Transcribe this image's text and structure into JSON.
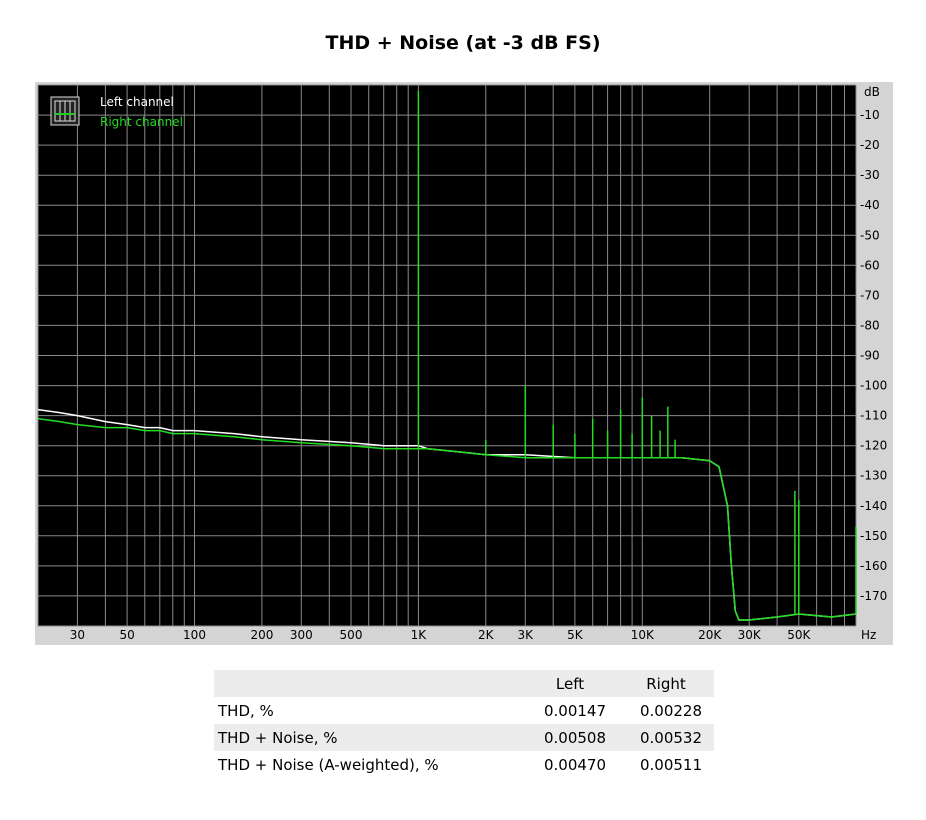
{
  "page": {
    "title": "THD + Noise (at -3 dB FS)"
  },
  "chart_data": {
    "type": "line",
    "title": "THD + Noise (at -3 dB FS)",
    "x_scale": "log",
    "xlim": [
      20,
      90000
    ],
    "ylim": [
      -180,
      0
    ],
    "x_unit": "Hz",
    "y_unit": "dB",
    "x_ticks": [
      {
        "v": 30,
        "label": "30"
      },
      {
        "v": 50,
        "label": "50"
      },
      {
        "v": 100,
        "label": "100"
      },
      {
        "v": 200,
        "label": "200"
      },
      {
        "v": 300,
        "label": "300"
      },
      {
        "v": 500,
        "label": "500"
      },
      {
        "v": 1000,
        "label": "1K"
      },
      {
        "v": 2000,
        "label": "2K"
      },
      {
        "v": 3000,
        "label": "3K"
      },
      {
        "v": 5000,
        "label": "5K"
      },
      {
        "v": 10000,
        "label": "10K"
      },
      {
        "v": 20000,
        "label": "20K"
      },
      {
        "v": 30000,
        "label": "30K"
      },
      {
        "v": 50000,
        "label": "50K"
      }
    ],
    "y_ticks": [
      {
        "v": -10,
        "label": "-10"
      },
      {
        "v": -20,
        "label": "-20"
      },
      {
        "v": -30,
        "label": "-30"
      },
      {
        "v": -40,
        "label": "-40"
      },
      {
        "v": -50,
        "label": "-50"
      },
      {
        "v": -60,
        "label": "-60"
      },
      {
        "v": -70,
        "label": "-70"
      },
      {
        "v": -80,
        "label": "-80"
      },
      {
        "v": -90,
        "label": "-90"
      },
      {
        "v": -100,
        "label": "-100"
      },
      {
        "v": -110,
        "label": "-110"
      },
      {
        "v": -120,
        "label": "-120"
      },
      {
        "v": -130,
        "label": "-130"
      },
      {
        "v": -140,
        "label": "-140"
      },
      {
        "v": -150,
        "label": "-150"
      },
      {
        "v": -160,
        "label": "-160"
      },
      {
        "v": -170,
        "label": "-170"
      }
    ],
    "grid": true,
    "legend_position": "top-left",
    "background": "#000000",
    "series": [
      {
        "name": "Left channel",
        "color": "#ffffff",
        "x": [
          20,
          25,
          30,
          40,
          50,
          60,
          70,
          80,
          100,
          150,
          200,
          300,
          500,
          700,
          900,
          1000,
          1100,
          1500,
          2000,
          3000,
          5000,
          10000,
          15000,
          20000,
          22000,
          24000,
          25000,
          26000,
          27000,
          30000,
          40000,
          50000,
          70000,
          90000
        ],
        "y": [
          -108,
          -109,
          -110,
          -112,
          -113,
          -114,
          -114,
          -115,
          -115,
          -116,
          -117,
          -118,
          -119,
          -120,
          -120,
          -120,
          -121,
          -122,
          -123,
          -123,
          -124,
          -124,
          -124,
          -125,
          -127,
          -140,
          -160,
          -175,
          -178,
          -178,
          -177,
          -176,
          -177,
          -176
        ]
      },
      {
        "name": "Right channel",
        "color": "#22dd22",
        "x": [
          20,
          25,
          30,
          40,
          50,
          60,
          70,
          80,
          100,
          150,
          200,
          300,
          500,
          700,
          900,
          1000,
          1100,
          1500,
          2000,
          3000,
          5000,
          10000,
          15000,
          20000,
          22000,
          24000,
          25000,
          26000,
          27000,
          30000,
          40000,
          50000,
          70000,
          90000
        ],
        "y": [
          -111,
          -112,
          -113,
          -114,
          -114,
          -115,
          -115,
          -116,
          -116,
          -117,
          -118,
          -119,
          -120,
          -121,
          -121,
          -121,
          -121,
          -122,
          -123,
          -124,
          -124,
          -124,
          -124,
          -125,
          -127,
          -140,
          -160,
          -175,
          -178,
          -178,
          -177,
          -176,
          -177,
          -176
        ],
        "peaks": [
          {
            "x": 1000,
            "y": -2
          },
          {
            "x": 2000,
            "y": -118
          },
          {
            "x": 3000,
            "y": -100
          },
          {
            "x": 4000,
            "y": -113
          },
          {
            "x": 5000,
            "y": -116
          },
          {
            "x": 6000,
            "y": -111
          },
          {
            "x": 7000,
            "y": -115
          },
          {
            "x": 8000,
            "y": -108
          },
          {
            "x": 9000,
            "y": -116
          },
          {
            "x": 10000,
            "y": -104
          },
          {
            "x": 11000,
            "y": -110
          },
          {
            "x": 12000,
            "y": -115
          },
          {
            "x": 13000,
            "y": -107
          },
          {
            "x": 14000,
            "y": -118
          },
          {
            "x": 48000,
            "y": -135
          },
          {
            "x": 50000,
            "y": -138
          },
          {
            "x": 90000,
            "y": -147
          }
        ]
      }
    ]
  },
  "results_table": {
    "columns": [
      "",
      "Left",
      "Right"
    ],
    "rows": [
      {
        "label": "THD, %",
        "left": "0.00147",
        "right": "0.00228"
      },
      {
        "label": "THD + Noise, %",
        "left": "0.00508",
        "right": "0.00532"
      },
      {
        "label": "THD + Noise (A-weighted), %",
        "left": "0.00470",
        "right": "0.00511"
      }
    ]
  }
}
